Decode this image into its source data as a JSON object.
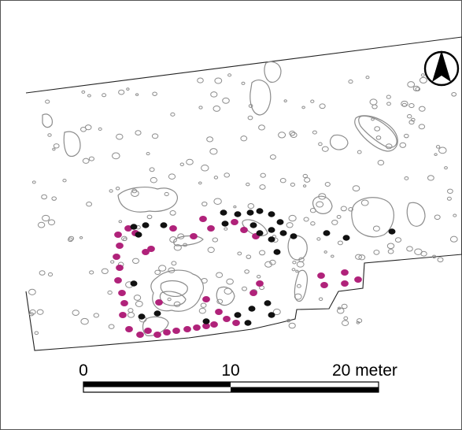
{
  "scale_bar": {
    "label_start": "0",
    "label_mid": "10",
    "label_end": "20 meter"
  },
  "north_arrow": {
    "icon": "north-arrow-icon"
  },
  "colors": {
    "outline": "#8c8c8c",
    "boundary": "#222222",
    "magenta_postholes": "#b0227a",
    "black_postholes": "#111111"
  }
}
